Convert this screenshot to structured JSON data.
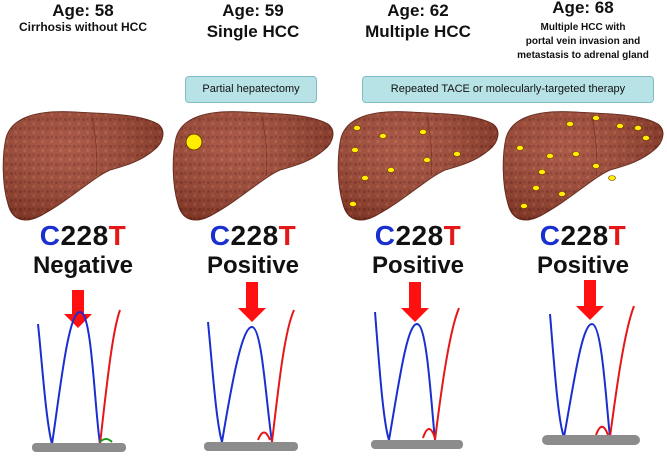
{
  "panels": [
    {
      "age": "Age: 58",
      "subtitle": "Cirrhosis without HCC",
      "mutation": {
        "c": "C",
        "n": "228",
        "t": "T"
      },
      "status": "Negative",
      "tumor_count": 0
    },
    {
      "age": "Age: 59",
      "subtitle": "Single HCC",
      "mutation": {
        "c": "C",
        "n": "228",
        "t": "T"
      },
      "status": "Positive",
      "tumor_count": 1
    },
    {
      "age": "Age: 62",
      "subtitle": "Multiple HCC",
      "mutation": {
        "c": "C",
        "n": "228",
        "t": "T"
      },
      "status": "Positive",
      "tumor_count": 9
    },
    {
      "age": "Age: 68",
      "subtitle_line1": "Multiple  HCC with",
      "subtitle_line2": "portal vein invasion  and",
      "subtitle_line3": "metastasis  to adrenal gland",
      "mutation": {
        "c": "C",
        "n": "228",
        "t": "T"
      },
      "status": "Positive",
      "tumor_count": 14
    }
  ],
  "treatments": {
    "hepatectomy": "Partial hepatectomy",
    "tace": "Repeated TACE or molecularly-targeted therapy"
  },
  "colors": {
    "liver": "#a0442f",
    "tumor": "#ffee00",
    "arrow": "#ff1010",
    "c_trace": "#1a2fcf",
    "t_trace": "#e41818",
    "baseline": "#8c8c8c"
  }
}
